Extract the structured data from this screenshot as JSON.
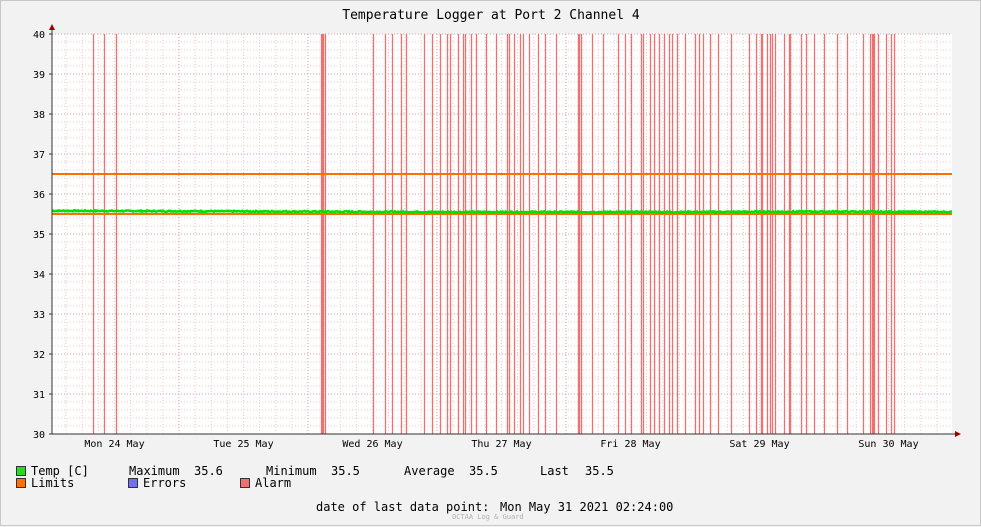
{
  "chart_data": {
    "type": "line",
    "title": "Temperature Logger at Port 2 Channel 4",
    "ylim": [
      30,
      40
    ],
    "y_ticks": [
      "30",
      "31",
      "32",
      "33",
      "34",
      "35",
      "36",
      "37",
      "38",
      "39",
      "40"
    ],
    "x_range_days": [
      "Mon 24 May 00:00",
      "Mon 31 May 02:24"
    ],
    "x_tick_labels": [
      "Mon 24 May",
      "Tue 25 May",
      "Wed 26 May",
      "Thu 27 May",
      "Fri 28 May",
      "Sat 29 May",
      "Sun 30 May"
    ],
    "grid": true,
    "series": [
      {
        "name": "Temp [C]",
        "color": "#00e000",
        "approx_values": [
          35.58,
          35.57,
          35.56,
          35.55,
          35.55,
          35.55,
          35.56,
          35.55
        ]
      },
      {
        "name": "Limits",
        "color": "#ff7000",
        "values": [
          35.5,
          36.5
        ]
      },
      {
        "name": "Alarm",
        "color": "#f07070",
        "alarm_event_day_offsets": [
          0.33,
          0.42,
          0.51,
          2.1,
          2.11,
          2.12,
          2.13,
          2.5,
          2.6,
          2.65,
          2.72,
          2.76,
          2.9,
          2.96,
          3.02,
          3.08,
          3.1,
          3.16,
          3.2,
          3.22,
          3.26,
          3.3,
          3.38,
          3.46,
          3.54,
          3.56,
          3.6,
          3.64,
          3.67,
          3.71,
          3.78,
          3.84,
          3.92,
          4.09,
          4.1,
          4.12,
          4.2,
          4.29,
          4.4,
          4.46,
          4.5,
          4.58,
          4.6,
          4.65,
          4.68,
          4.72,
          4.76,
          4.8,
          4.82,
          4.86,
          4.92,
          5.0,
          5.03,
          5.06,
          5.12,
          5.18,
          5.28,
          5.42,
          5.47,
          5.51,
          5.52,
          5.56,
          5.58,
          5.6,
          5.62,
          5.69,
          5.73,
          5.74,
          5.82,
          5.86,
          5.92,
          6.0,
          6.1,
          6.18,
          6.3,
          6.36,
          6.37,
          6.38,
          6.39,
          6.42,
          6.48,
          6.52,
          6.54
        ]
      }
    ]
  },
  "legend": {
    "temp_label": "Temp [C]",
    "max_label": "Maximum",
    "max_value": "35.6",
    "min_label": "Minimum",
    "min_value": "35.5",
    "avg_label": "Average",
    "avg_value": "35.5",
    "last_label": "Last",
    "last_value": "35.5",
    "limits_label": "Limits",
    "errors_label": "Errors",
    "alarm_label": "Alarm",
    "colors": {
      "temp": "#22dd22",
      "limits": "#ff7000",
      "errors": "#7070f0",
      "alarm": "#f07070"
    }
  },
  "footer": {
    "last_point_label": "date of last data point:",
    "last_point_value": "Mon May 31 2021 02:24:00",
    "watermark": "OCTAA Log & Guard"
  }
}
